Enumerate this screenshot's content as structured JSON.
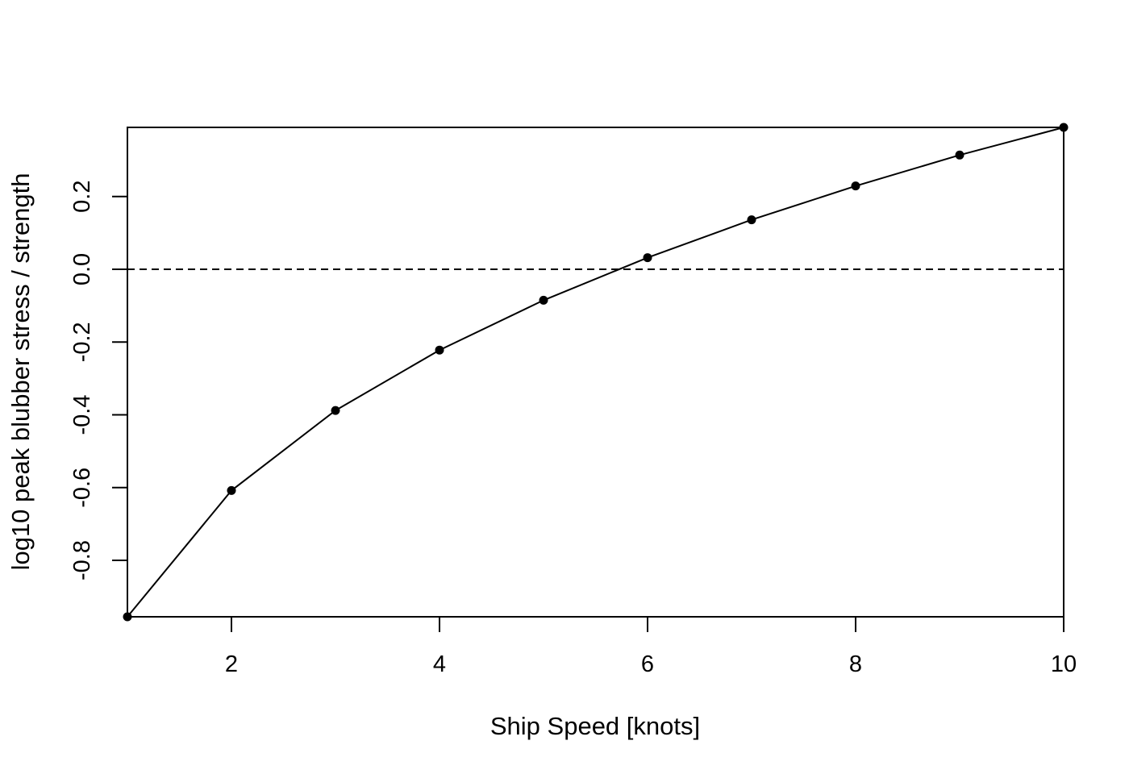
{
  "chart_data": {
    "type": "line",
    "title": "",
    "xlabel": "Ship Speed [knots]",
    "ylabel": "log10 peak blubber stress / strength",
    "xlim": [
      1,
      10
    ],
    "ylim": [
      -0.955,
      0.39
    ],
    "x_ticks": [
      2,
      4,
      6,
      8,
      10
    ],
    "y_ticks": [
      -0.8,
      -0.6,
      -0.4,
      -0.2,
      0.0,
      0.2
    ],
    "x_tick_labels": [
      "2",
      "4",
      "6",
      "8",
      "10"
    ],
    "y_tick_labels": [
      "-0.8",
      "-0.6",
      "-0.4",
      "-0.2",
      "0.0",
      "0.2"
    ],
    "grid": false,
    "legend": "none",
    "series": [
      {
        "x": [
          1,
          2,
          3,
          4,
          5,
          6,
          7,
          8,
          9,
          10
        ],
        "y": [
          -0.955,
          -0.608,
          -0.388,
          -0.222,
          -0.085,
          0.032,
          0.136,
          0.229,
          0.314,
          0.39
        ],
        "color": "#000000",
        "markers": true,
        "line": "solid"
      }
    ],
    "reference_lines": [
      {
        "axis": "y",
        "value": 0,
        "style": "dashed",
        "color": "#000000"
      }
    ]
  }
}
